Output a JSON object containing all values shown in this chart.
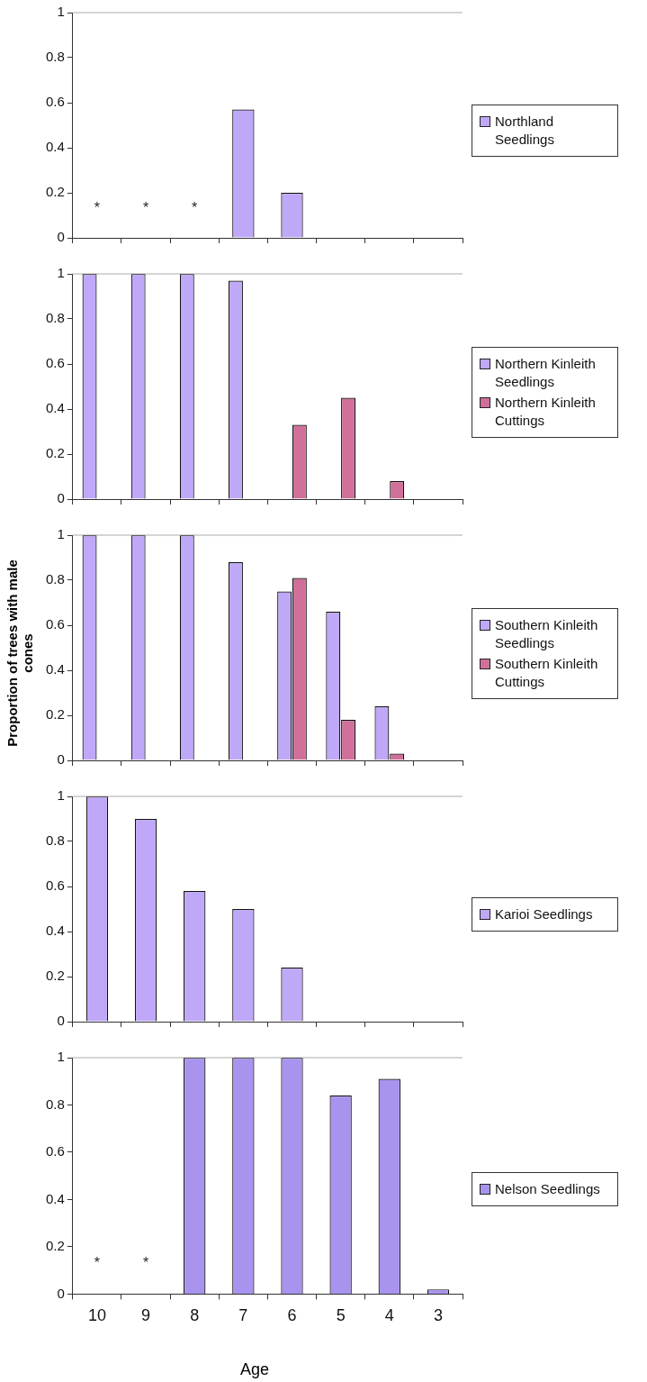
{
  "chart_data": [
    {
      "type": "bar",
      "categories": [
        "10",
        "9",
        "8",
        "7",
        "6",
        "5",
        "4",
        "3"
      ],
      "series": [
        {
          "name": "Northland Seedlings",
          "color": "#c0a8f8",
          "values": [
            null,
            null,
            null,
            0.57,
            0.2,
            null,
            null,
            null
          ]
        }
      ],
      "ylim": [
        0,
        1
      ],
      "yticks": [
        0,
        0.2,
        0.4,
        0.6,
        0.8,
        1
      ],
      "tick_labels": "y",
      "legend": "right",
      "annotations": [
        "*",
        "*",
        "*"
      ]
    },
    {
      "type": "bar",
      "categories": [
        "10",
        "9",
        "8",
        "7",
        "6",
        "5",
        "4",
        "3"
      ],
      "series": [
        {
          "name": "Northern Kinleith Seedlings",
          "color": "#c0a8f8",
          "values": [
            1,
            1,
            1,
            0.97,
            null,
            null,
            null,
            null
          ]
        },
        {
          "name": "Northern Kinleith Cuttings",
          "color": "#d0709a",
          "values": [
            null,
            null,
            null,
            null,
            0.33,
            0.45,
            0.08,
            null
          ]
        }
      ],
      "ylim": [
        0,
        1
      ],
      "yticks": [
        0,
        0.2,
        0.4,
        0.6,
        0.8,
        1
      ],
      "tick_labels": "y",
      "legend": "right"
    },
    {
      "type": "bar",
      "ylabel": "Proportion of trees with male cones",
      "categories": [
        "10",
        "9",
        "8",
        "7",
        "6",
        "5",
        "4",
        "3"
      ],
      "series": [
        {
          "name": "Southern Kinleith Seedlings",
          "color": "#c0a8f8",
          "values": [
            1,
            1,
            1,
            0.88,
            0.75,
            0.66,
            0.24,
            null
          ]
        },
        {
          "name": "Southern Kinleith Cuttings",
          "color": "#d0709a",
          "values": [
            null,
            null,
            null,
            null,
            0.81,
            0.18,
            0.03,
            null
          ]
        }
      ],
      "ylim": [
        0,
        1
      ],
      "yticks": [
        0,
        0.2,
        0.4,
        0.6,
        0.8,
        1
      ],
      "tick_labels": "y",
      "legend": "right"
    },
    {
      "type": "bar",
      "categories": [
        "10",
        "9",
        "8",
        "7",
        "6",
        "5",
        "4",
        "3"
      ],
      "series": [
        {
          "name": "Karioi Seedlings",
          "color": "#c0a8f8",
          "values": [
            1,
            0.9,
            0.58,
            0.5,
            0.24,
            null,
            null,
            null
          ]
        }
      ],
      "ylim": [
        0,
        1
      ],
      "yticks": [
        0,
        0.2,
        0.4,
        0.6,
        0.8,
        1
      ],
      "tick_labels": "y",
      "legend": "right"
    },
    {
      "type": "bar",
      "xlabel": "Age",
      "categories": [
        "10",
        "9",
        "8",
        "7",
        "6",
        "5",
        "4",
        "3"
      ],
      "series": [
        {
          "name": "Nelson Seedlings",
          "color": "#a894ee",
          "values": [
            null,
            null,
            1,
            1,
            1,
            0.84,
            0.91,
            0.02
          ]
        }
      ],
      "ylim": [
        0,
        1
      ],
      "yticks": [
        0,
        0.2,
        0.4,
        0.6,
        0.8,
        1
      ],
      "legend": "right",
      "annotations": [
        "*",
        "*"
      ]
    }
  ]
}
